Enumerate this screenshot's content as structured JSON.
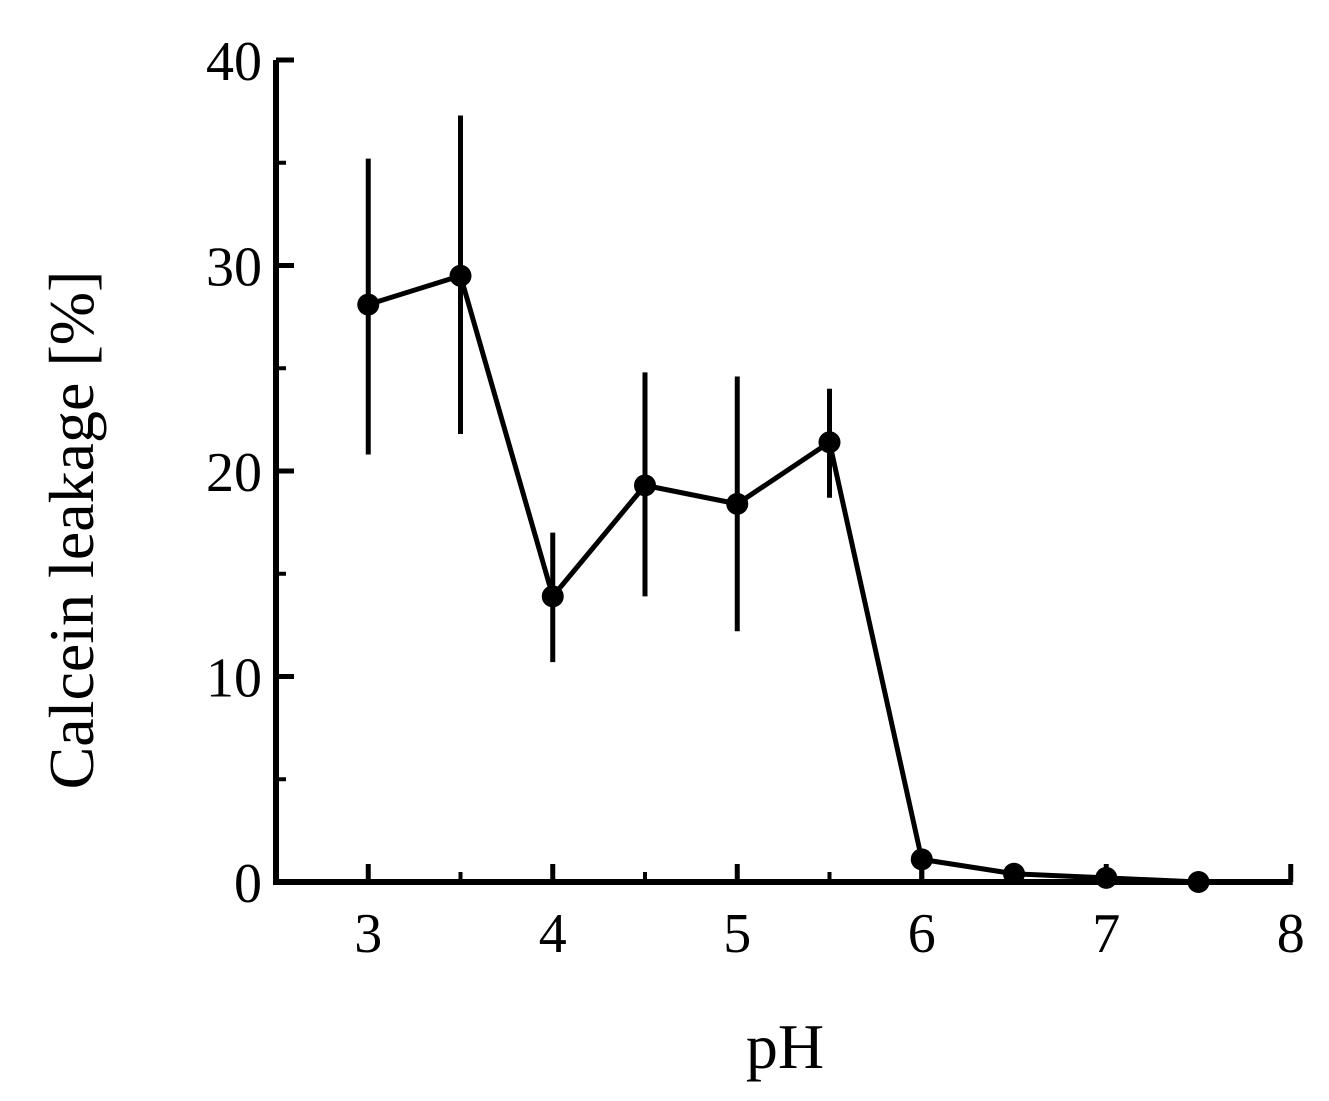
{
  "chart_data": {
    "type": "line",
    "title": "",
    "xlabel": "pH",
    "ylabel": "Calcein leakage [%]",
    "xlim": [
      2.5,
      8
    ],
    "ylim": [
      0,
      40
    ],
    "x_ticks": [
      3,
      4,
      5,
      6,
      7,
      8
    ],
    "x_minor_ticks": [
      3.5,
      4.5,
      5.5,
      6.5,
      7.5
    ],
    "y_ticks": [
      0,
      10,
      20,
      30,
      40
    ],
    "y_minor_ticks": [
      5,
      15,
      25,
      35
    ],
    "grid": false,
    "legend": null,
    "series": [
      {
        "name": "Calcein leakage",
        "marker": "filled-circle",
        "color": "#000000",
        "x": [
          3,
          3.5,
          4,
          4.5,
          5,
          5.5,
          6,
          6.5,
          7,
          7.5
        ],
        "values": [
          28.1,
          29.5,
          13.9,
          19.3,
          18.4,
          21.4,
          1.1,
          0.4,
          0.2,
          0.0
        ],
        "error_low": [
          20.8,
          21.8,
          10.7,
          13.9,
          12.2,
          18.7,
          0.0,
          0.0,
          0.0,
          0.0
        ],
        "error_high": [
          35.2,
          37.3,
          17.0,
          24.8,
          24.6,
          24.0,
          1.1,
          0.4,
          0.2,
          0.0
        ]
      }
    ]
  },
  "axes": {
    "x_title": "pH",
    "y_title": "Calcein leakage [%]",
    "x_tick_labels": [
      "3",
      "4",
      "5",
      "6",
      "7",
      "8"
    ],
    "y_tick_labels": [
      "0",
      "10",
      "20",
      "30",
      "40"
    ]
  }
}
